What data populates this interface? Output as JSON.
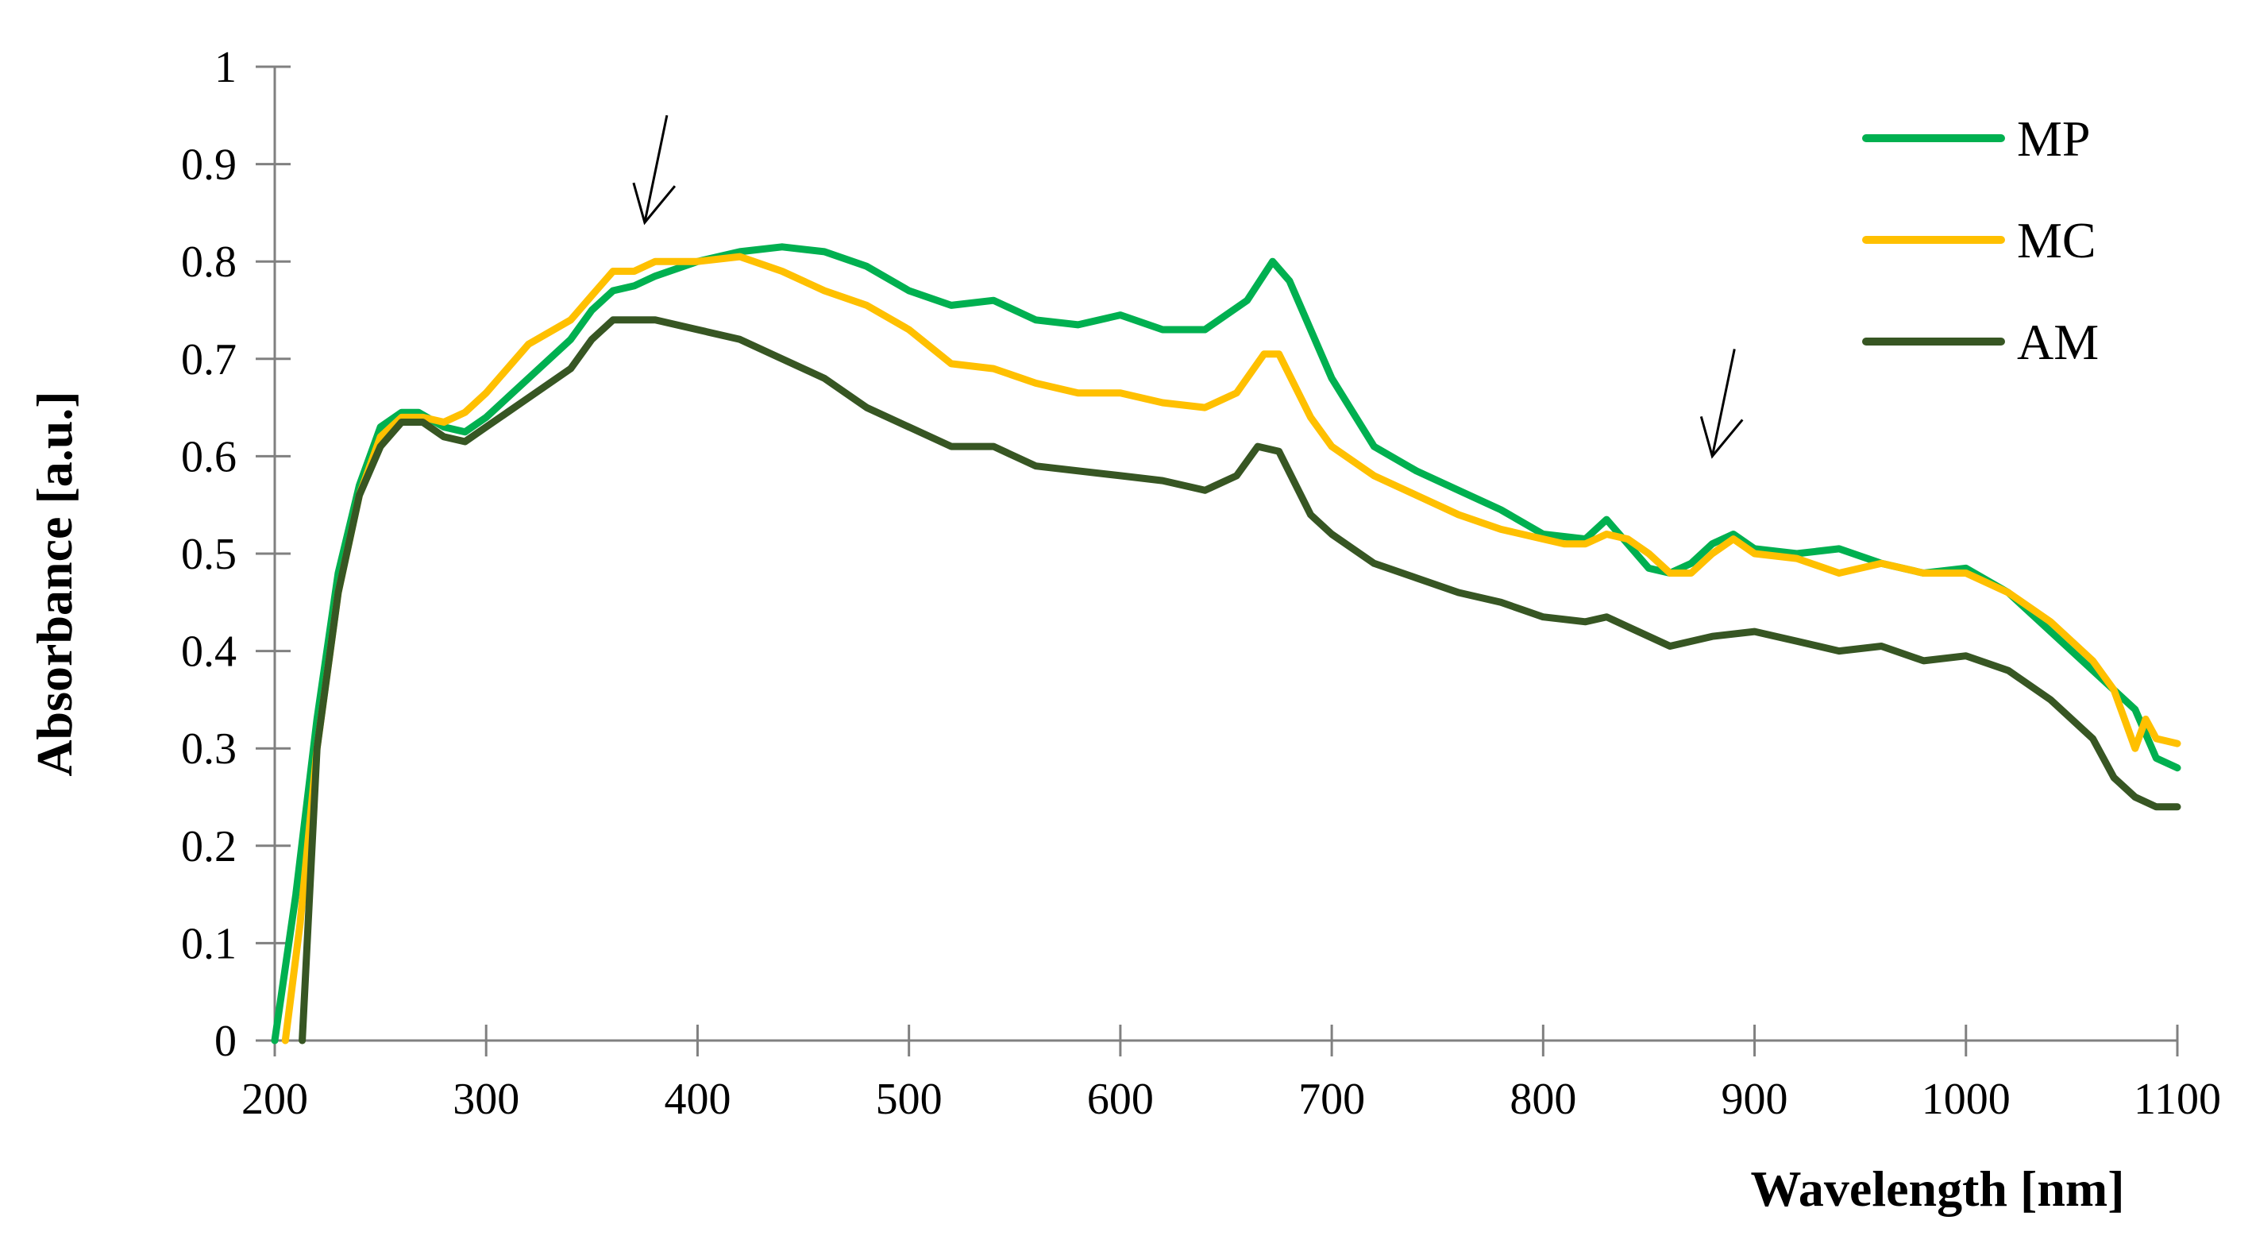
{
  "chart_data": {
    "type": "line",
    "title": "",
    "xlabel": "Wavelength [nm]",
    "ylabel": "Absorbance [a.u.]",
    "xlim": [
      200,
      1100
    ],
    "ylim": [
      0,
      1
    ],
    "x_ticks": [
      "200",
      "300",
      "400",
      "500",
      "600",
      "700",
      "800",
      "900",
      "1000",
      "1100"
    ],
    "x_tick_values": [
      200,
      300,
      400,
      500,
      600,
      700,
      800,
      900,
      1000,
      1100
    ],
    "y_ticks": [
      "0",
      "0.1",
      "0.2",
      "0.3",
      "0.4",
      "0.5",
      "0.6",
      "0.7",
      "0.8",
      "0.9",
      "1"
    ],
    "y_tick_values": [
      0,
      0.1,
      0.2,
      0.3,
      0.4,
      0.5,
      0.6,
      0.7,
      0.8,
      0.9,
      1
    ],
    "grid": false,
    "legend_position": "top-right",
    "series": [
      {
        "name": "MP",
        "color": "#00b050",
        "x": [
          200,
          210,
          220,
          230,
          240,
          250,
          260,
          268,
          280,
          290,
          300,
          320,
          340,
          350,
          360,
          370,
          380,
          400,
          420,
          440,
          460,
          480,
          500,
          520,
          540,
          560,
          580,
          600,
          620,
          640,
          660,
          672,
          680,
          700,
          720,
          740,
          760,
          780,
          800,
          820,
          830,
          840,
          850,
          860,
          870,
          880,
          890,
          900,
          920,
          940,
          960,
          980,
          1000,
          1020,
          1040,
          1060,
          1080,
          1090,
          1100
        ],
        "y": [
          0,
          0.15,
          0.33,
          0.48,
          0.57,
          0.63,
          0.645,
          0.645,
          0.63,
          0.625,
          0.64,
          0.68,
          0.72,
          0.75,
          0.77,
          0.775,
          0.785,
          0.8,
          0.81,
          0.815,
          0.81,
          0.795,
          0.77,
          0.755,
          0.76,
          0.74,
          0.735,
          0.745,
          0.73,
          0.73,
          0.76,
          0.8,
          0.78,
          0.68,
          0.61,
          0.585,
          0.565,
          0.545,
          0.52,
          0.515,
          0.535,
          0.51,
          0.485,
          0.48,
          0.49,
          0.51,
          0.52,
          0.505,
          0.5,
          0.505,
          0.49,
          0.48,
          0.485,
          0.46,
          0.42,
          0.38,
          0.34,
          0.29,
          0.28
        ]
      },
      {
        "name": "MC",
        "color": "#ffc000",
        "x": [
          205,
          212,
          220,
          230,
          240,
          250,
          260,
          270,
          280,
          290,
          300,
          320,
          340,
          350,
          360,
          370,
          380,
          390,
          400,
          420,
          440,
          460,
          480,
          500,
          520,
          540,
          560,
          580,
          600,
          620,
          640,
          655,
          668,
          675,
          690,
          700,
          720,
          740,
          760,
          780,
          800,
          810,
          820,
          830,
          840,
          850,
          860,
          870,
          880,
          890,
          900,
          920,
          940,
          960,
          980,
          1000,
          1020,
          1040,
          1060,
          1070,
          1080,
          1085,
          1090,
          1100
        ],
        "y": [
          0,
          0.12,
          0.3,
          0.46,
          0.56,
          0.62,
          0.64,
          0.64,
          0.635,
          0.645,
          0.665,
          0.715,
          0.74,
          0.765,
          0.79,
          0.79,
          0.8,
          0.8,
          0.8,
          0.805,
          0.79,
          0.77,
          0.755,
          0.73,
          0.695,
          0.69,
          0.675,
          0.665,
          0.665,
          0.655,
          0.65,
          0.665,
          0.705,
          0.705,
          0.64,
          0.61,
          0.58,
          0.56,
          0.54,
          0.525,
          0.515,
          0.51,
          0.51,
          0.52,
          0.515,
          0.5,
          0.48,
          0.48,
          0.5,
          0.515,
          0.5,
          0.495,
          0.48,
          0.49,
          0.48,
          0.48,
          0.46,
          0.43,
          0.39,
          0.36,
          0.3,
          0.33,
          0.31,
          0.305
        ]
      },
      {
        "name": "AM",
        "color": "#375623",
        "x": [
          213,
          220,
          230,
          240,
          250,
          260,
          270,
          280,
          290,
          300,
          320,
          340,
          350,
          360,
          370,
          380,
          400,
          420,
          440,
          460,
          480,
          500,
          520,
          540,
          560,
          580,
          600,
          620,
          640,
          655,
          665,
          675,
          690,
          700,
          720,
          740,
          760,
          780,
          800,
          820,
          830,
          840,
          860,
          880,
          900,
          920,
          940,
          960,
          980,
          1000,
          1020,
          1040,
          1060,
          1070,
          1080,
          1090,
          1100
        ],
        "y": [
          0,
          0.3,
          0.46,
          0.56,
          0.61,
          0.635,
          0.635,
          0.62,
          0.615,
          0.63,
          0.66,
          0.69,
          0.72,
          0.74,
          0.74,
          0.74,
          0.73,
          0.72,
          0.7,
          0.68,
          0.65,
          0.63,
          0.61,
          0.61,
          0.59,
          0.585,
          0.58,
          0.575,
          0.565,
          0.58,
          0.61,
          0.605,
          0.54,
          0.52,
          0.49,
          0.475,
          0.46,
          0.45,
          0.435,
          0.43,
          0.435,
          0.425,
          0.405,
          0.415,
          0.42,
          0.41,
          0.4,
          0.405,
          0.39,
          0.395,
          0.38,
          0.35,
          0.31,
          0.27,
          0.25,
          0.24,
          0.24
        ]
      }
    ],
    "annotations": [
      {
        "type": "arrow",
        "x": 375,
        "y": 0.84,
        "direction": "down"
      },
      {
        "type": "arrow",
        "x": 880,
        "y": 0.6,
        "direction": "down"
      }
    ]
  }
}
